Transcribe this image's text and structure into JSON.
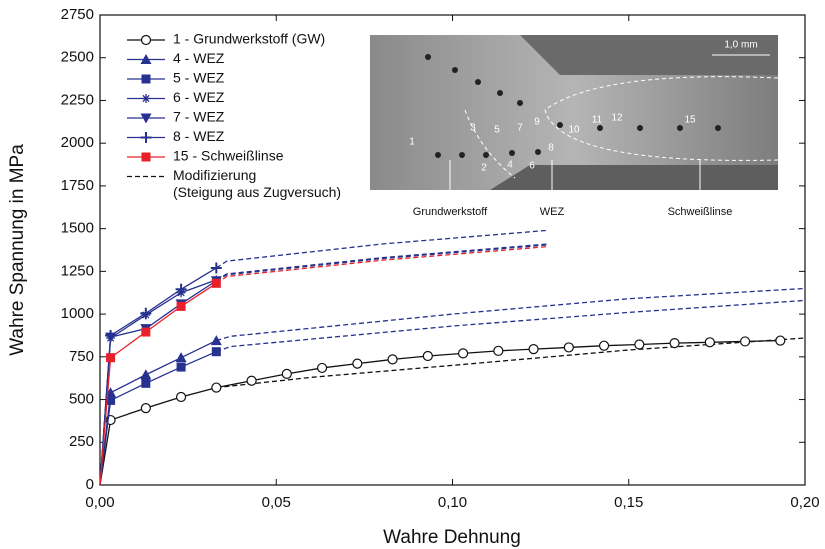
{
  "chart_data": {
    "type": "line",
    "xlabel": "Wahre  Dehnung",
    "ylabel": "Wahre Spannung in MPa",
    "xlim": [
      0,
      0.2
    ],
    "ylim": [
      0,
      2750
    ],
    "xticks": [
      {
        "value": 0,
        "label": "0,00"
      },
      {
        "value": 0.05,
        "label": "0,05"
      },
      {
        "value": 0.1,
        "label": "0,10"
      },
      {
        "value": 0.15,
        "label": "0,15"
      },
      {
        "value": 0.2,
        "label": "0,20"
      }
    ],
    "yticks": [
      0,
      250,
      500,
      750,
      1000,
      1250,
      1500,
      1750,
      2000,
      2250,
      2500,
      2750
    ],
    "series": [
      {
        "name": "1 - Grundwerkstoff (GW)",
        "color": "#111111",
        "marker": "circle",
        "x": [
          0,
          0.003,
          0.013,
          0.023,
          0.033,
          0.043,
          0.053,
          0.063,
          0.073,
          0.083,
          0.093,
          0.103,
          0.113,
          0.123,
          0.133,
          0.143,
          0.153,
          0.163,
          0.173,
          0.183,
          0.193
        ],
        "values": [
          0,
          380,
          450,
          515,
          570,
          610,
          650,
          685,
          710,
          735,
          755,
          770,
          785,
          795,
          805,
          815,
          822,
          830,
          835,
          840,
          845
        ],
        "modification": {
          "x": [
            0.033,
            0.06,
            0.1,
            0.15,
            0.2
          ],
          "values": [
            570,
            630,
            700,
            790,
            860
          ]
        }
      },
      {
        "name": "4 - WEZ",
        "color": "#27318f",
        "marker": "triangle-up",
        "x": [
          0,
          0.003,
          0.013,
          0.023,
          0.033
        ],
        "values": [
          0,
          540,
          645,
          745,
          845
        ],
        "modification": {
          "x": [
            0.033,
            0.037,
            0.1,
            0.15,
            0.2
          ],
          "values": [
            845,
            870,
            1000,
            1090,
            1150
          ]
        }
      },
      {
        "name": "5 - WEZ",
        "color": "#27318f",
        "marker": "square",
        "x": [
          0,
          0.003,
          0.013,
          0.023,
          0.033
        ],
        "values": [
          0,
          495,
          595,
          690,
          780
        ],
        "modification": {
          "x": [
            0.033,
            0.037,
            0.1,
            0.15,
            0.2
          ],
          "values": [
            780,
            810,
            930,
            1010,
            1080
          ]
        }
      },
      {
        "name": "6 - WEZ",
        "color": "#27318f",
        "marker": "asterisk",
        "x": [
          0,
          0.003,
          0.013,
          0.023,
          0.033
        ],
        "values": [
          0,
          860,
          995,
          1125,
          1200
        ],
        "modification": {
          "x": [
            0.033,
            0.036,
            0.08,
            0.127
          ],
          "values": [
            1200,
            1235,
            1330,
            1410
          ]
        }
      },
      {
        "name": "7 - WEZ",
        "color": "#27318f",
        "marker": "triangle-down",
        "x": [
          0,
          0.003,
          0.013,
          0.023,
          0.033
        ],
        "values": [
          0,
          865,
          915,
          1060,
          1195
        ],
        "modification": {
          "x": [
            0.033,
            0.036,
            0.08,
            0.127
          ],
          "values": [
            1195,
            1230,
            1325,
            1405
          ]
        }
      },
      {
        "name": "8 - WEZ",
        "color": "#27318f",
        "marker": "plus",
        "x": [
          0,
          0.003,
          0.013,
          0.023,
          0.033
        ],
        "values": [
          0,
          875,
          1005,
          1145,
          1270
        ],
        "modification": {
          "x": [
            0.033,
            0.036,
            0.08,
            0.127
          ],
          "values": [
            1270,
            1310,
            1410,
            1490
          ]
        }
      },
      {
        "name": "15 - Schweißlinse",
        "color": "#e8202a",
        "marker": "square",
        "x": [
          0,
          0.003,
          0.013,
          0.023,
          0.033
        ],
        "values": [
          0,
          745,
          895,
          1045,
          1180
        ],
        "modification": {
          "x": [
            0.033,
            0.036,
            0.08,
            0.127
          ],
          "values": [
            1180,
            1220,
            1315,
            1395
          ]
        }
      }
    ],
    "modification_label": [
      "Modifizierung",
      "(Steigung aus Zugversuch)"
    ],
    "inset": {
      "scale": "1,0 mm",
      "zones": [
        "Grundwerkstoff",
        "WEZ",
        "Schweißlinse"
      ],
      "numbers": [
        "1",
        "2",
        "3",
        "4",
        "5",
        "6",
        "7",
        "8",
        "9",
        "10",
        "11",
        "12",
        "15"
      ]
    }
  }
}
